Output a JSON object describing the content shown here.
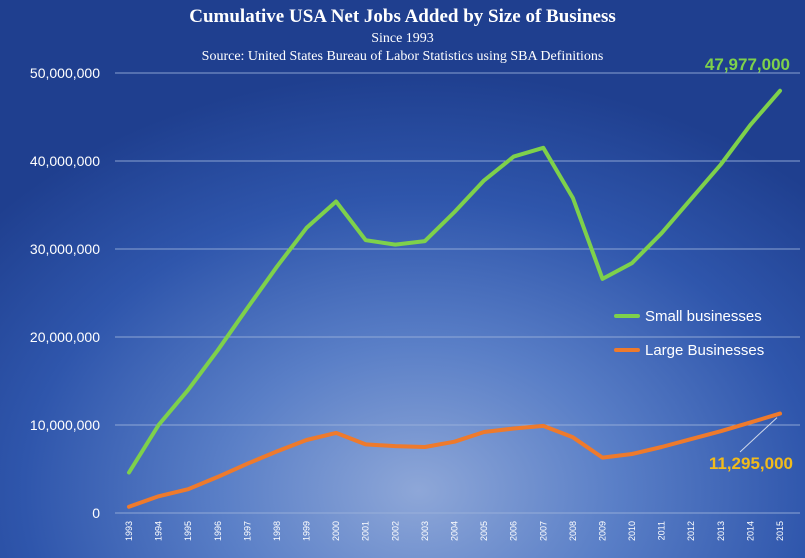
{
  "colors": {
    "small": "#7ed14b",
    "large": "#ee7a2c",
    "large_callout": "#f2bb1b",
    "grid": "#9db3dc"
  },
  "chart_data": {
    "type": "line",
    "title": "Cumulative USA Net Jobs Added by Size of Business",
    "subtitle": "Since 1993",
    "source": "Source: United States Bureau of Labor Statistics using SBA Definitions",
    "xlabel": "",
    "ylabel": "",
    "ylim": [
      0,
      50000000
    ],
    "yticks": [
      "0",
      "10,000,000",
      "20,000,000",
      "30,000,000",
      "40,000,000",
      "50,000,000"
    ],
    "ytick_values": [
      0,
      10000000,
      20000000,
      30000000,
      40000000,
      50000000
    ],
    "grid": true,
    "legend_position": "right",
    "categories": [
      "1993",
      "1994",
      "1995",
      "1996",
      "1997",
      "1998",
      "1999",
      "2000",
      "2001",
      "2002",
      "2003",
      "2004",
      "2005",
      "2006",
      "2007",
      "2008",
      "2009",
      "2010",
      "2011",
      "2012",
      "2013",
      "2014",
      "2015"
    ],
    "series": [
      {
        "name": "Small businesses",
        "values": [
          4600000,
          10000000,
          14000000,
          18500000,
          23300000,
          28000000,
          32400000,
          35400000,
          31000000,
          30500000,
          30900000,
          34200000,
          37800000,
          40500000,
          41500000,
          35800000,
          26600000,
          28400000,
          31800000,
          35700000,
          39600000,
          44100000,
          47977000
        ]
      },
      {
        "name": "Large Businesses",
        "values": [
          700000,
          1900000,
          2700000,
          4100000,
          5600000,
          7000000,
          8300000,
          9100000,
          7800000,
          7600000,
          7500000,
          8100000,
          9200000,
          9600000,
          9900000,
          8600000,
          6300000,
          6700000,
          7500000,
          8400000,
          9300000,
          10300000,
          11295000
        ]
      }
    ],
    "annotations": {
      "small_end": "47,977,000",
      "large_end": "11,295,000"
    }
  }
}
